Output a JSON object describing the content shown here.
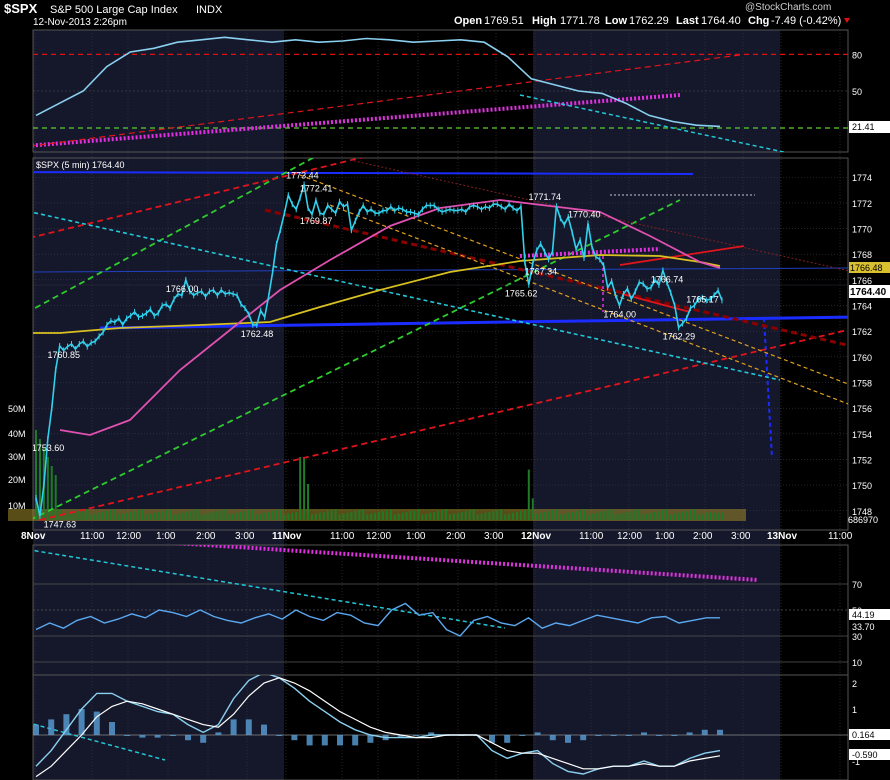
{
  "header": {
    "symbol": "$SPX",
    "name": "S&P 500 Large Cap Index",
    "exchange": "INDX",
    "datetime": "12-Nov-2013 2:26pm",
    "open_label": "Open",
    "open": "1769.51",
    "high_label": "High",
    "high": "1771.78",
    "low_label": "Low",
    "low": "1762.29",
    "last_label": "Last",
    "last": "1764.40",
    "chg_label": "Chg",
    "chg": "-7.49 (-0.42%)",
    "watermark": "@StockCharts.com"
  },
  "colors": {
    "price": "#31d1ee",
    "blue_line": "#1a2cff",
    "red_dash": "#e0141c",
    "green_dash": "#2ecc2e",
    "cyan_dash": "#22c8d8",
    "magenta": "#e030e0",
    "yellow_ma": "#d8c020",
    "pink_ma": "#e050b0",
    "orange_dash": "#e0a020",
    "dark_red": "#8a0000",
    "shade": "#15182a",
    "grid": "#3a3a4a",
    "axis_text": "#ffffff"
  },
  "chart_data": [
    {
      "type": "line",
      "panel": "rsi_top",
      "ylim": [
        0,
        100
      ],
      "ticks": [
        "80",
        "50"
      ],
      "value_label": "21.41",
      "levels": [
        80,
        30
      ],
      "series": [
        {
          "values": [
            30,
            40,
            50,
            70,
            82,
            85,
            90,
            92,
            94,
            92,
            90,
            92,
            90,
            91,
            93,
            92,
            90,
            91,
            92,
            90,
            78,
            60,
            55,
            50,
            48,
            40,
            30,
            25,
            22,
            21
          ]
        }
      ]
    },
    {
      "type": "line",
      "panel": "price",
      "title": "$SPX (5 min) 1764.40",
      "ylim": [
        1746.5,
        1775.5
      ],
      "ticks": [
        "1774",
        "1772",
        "1770",
        "1768",
        "1766",
        "1764",
        "1762",
        "1760",
        "1758",
        "1756",
        "1754",
        "1752",
        "1750",
        "1748"
      ],
      "x_labels": [
        "8Nov",
        "11:00",
        "12:00",
        "1:00",
        "2:00",
        "3:00",
        "11Nov",
        "11:00",
        "12:00",
        "1:00",
        "2:00",
        "3:00",
        "12Nov",
        "11:00",
        "12:00",
        "1:00",
        "2:00",
        "3:00",
        "13Nov",
        "11:00"
      ],
      "volume_ticks": [
        "50M",
        "40M",
        "30M",
        "20M",
        "10M"
      ],
      "volume_label": "686970",
      "right_labels": [
        "1766.48",
        "1764.40"
      ],
      "annotations": [
        {
          "text": "1773.44",
          "t": 68.5,
          "v": 1773.44
        },
        {
          "text": "1772.41",
          "t": 72,
          "v": 1772.41
        },
        {
          "text": "1769.87",
          "t": 72,
          "v": 1769.87
        },
        {
          "text": "1766.00",
          "t": 38,
          "v": 1766.0
        },
        {
          "text": "1762.48",
          "t": 57,
          "v": 1762.48
        },
        {
          "text": "1760.85",
          "t": 8,
          "v": 1760.85
        },
        {
          "text": "1753.60",
          "t": 4,
          "v": 1753.6
        },
        {
          "text": "1747.63",
          "t": 7,
          "v": 1747.63
        },
        {
          "text": "1771.74",
          "t": 130,
          "v": 1771.74
        },
        {
          "text": "1770.40",
          "t": 140,
          "v": 1770.4
        },
        {
          "text": "1767.34",
          "t": 129,
          "v": 1767.34
        },
        {
          "text": "1765.62",
          "t": 124,
          "v": 1765.62
        },
        {
          "text": "1766.74",
          "t": 161,
          "v": 1766.74
        },
        {
          "text": "1765.17",
          "t": 170,
          "v": 1765.17
        },
        {
          "text": "1764.00",
          "t": 149,
          "v": 1764.0
        },
        {
          "text": "1762.29",
          "t": 164,
          "v": 1762.29
        }
      ],
      "series": [
        {
          "values": [
            1749,
            1747.6,
            1750,
            1753.6,
            1756,
            1759,
            1760.85,
            1760.5,
            1760.8,
            1761,
            1760.6,
            1761,
            1761.2,
            1760.8,
            1761.1,
            1761.2,
            1761.6,
            1761.9,
            1762.5,
            1762.8,
            1762.7,
            1763,
            1762.5,
            1763,
            1763.2,
            1763.5,
            1763.1,
            1763.2,
            1763.4,
            1763.7,
            1763.2,
            1763.4,
            1764,
            1764.1,
            1763.8,
            1764.5,
            1764.9,
            1764.8,
            1766,
            1765.1,
            1764.8,
            1765,
            1765.1,
            1764.7,
            1765.1,
            1765.2,
            1764.8,
            1765.2,
            1764.9,
            1765,
            1764.9,
            1764.8,
            1764.1,
            1763.8,
            1763.3,
            1762.5,
            1762.48,
            1763.6,
            1763.1,
            1764.7,
            1766.6,
            1768.8,
            1769.9,
            1771.2,
            1772.6,
            1771.9,
            1771.5,
            1772.4,
            1773.44,
            1771.6,
            1771.1,
            1772.2,
            1771.2,
            1771.1,
            1771.8,
            1771.5,
            1771.2,
            1772.1,
            1771.7,
            1771.9,
            1769.87,
            1770.6,
            1771.3,
            1771.8,
            1771.3,
            1771.5,
            1771.2,
            1771.2,
            1771.4,
            1771.4,
            1771.7,
            1771.4,
            1771.6,
            1771.5,
            1771.3,
            1771.3,
            1771.2,
            1771.1,
            1771.5,
            1771.8,
            1771.8,
            1771.8,
            1771.5,
            1771.3,
            1771.4,
            1771.5,
            1771.4,
            1771.4,
            1771.5,
            1771.3,
            1771.7,
            1771.8,
            1771.7,
            1771.5,
            1771.7,
            1771.6,
            1771.9,
            1771.9,
            1771.7,
            1771.5,
            1771.9,
            1771.6,
            1771.4,
            1771.7,
            1767.34,
            1765.62,
            1767.3,
            1768.3,
            1768.8,
            1768.2,
            1767.6,
            1768.2,
            1771.74,
            1770.8,
            1770.3,
            1770.9,
            1769.7,
            1768.4,
            1769.1,
            1767.7,
            1770.4,
            1768.6,
            1767.8,
            1767.6,
            1767.1,
            1765.4,
            1765.9,
            1764.8,
            1764.0,
            1764.9,
            1765.3,
            1764.5,
            1765.1,
            1765.8,
            1765.7,
            1765.3,
            1765.4,
            1766.0,
            1765.6,
            1766.74,
            1765.8,
            1765.0,
            1764.0,
            1762.29,
            1762.6,
            1763.0,
            1763.8,
            1764.0,
            1764.5,
            1764.6,
            1764.4,
            1764.5,
            1764.8,
            1765.17,
            1764.4
          ]
        }
      ]
    },
    {
      "type": "line",
      "panel": "rsi_bottom",
      "ylim": [
        0,
        100
      ],
      "ticks": [
        "70",
        "50",
        "30",
        "10"
      ],
      "value_labels": [
        "44.19",
        "33.70"
      ],
      "series": [
        {
          "values": [
            35,
            40,
            36,
            42,
            45,
            40,
            43,
            47,
            44,
            50,
            48,
            45,
            50,
            45,
            42,
            40,
            44,
            47,
            43,
            50,
            45,
            42,
            48,
            46,
            40,
            38,
            50,
            55,
            46,
            48,
            35,
            30,
            42,
            45,
            40,
            38,
            44,
            36,
            40,
            38,
            42,
            46,
            44,
            42,
            40,
            44,
            45,
            40,
            42,
            44,
            44
          ]
        }
      ]
    },
    {
      "type": "line",
      "panel": "macd",
      "ticks": [
        "2",
        "1",
        "0",
        "-1"
      ],
      "value_labels": [
        "0.164",
        "-0.590"
      ],
      "series": [
        {
          "name": "macd",
          "values": [
            -1.2,
            -0.6,
            0.2,
            1.0,
            1.6,
            1.6,
            1.3,
            1.1,
            0.9,
            0.8,
            0.4,
            0.1,
            0.4,
            1.4,
            2.1,
            2.4,
            2.2,
            1.8,
            1.3,
            0.9,
            0.5,
            0.2,
            0.0,
            -0.1,
            -0.1,
            -0.1,
            0.0,
            0.0,
            0.0,
            0.0,
            -0.6,
            -0.9,
            -0.7,
            -0.6,
            -1.1,
            -1.4,
            -1.5,
            -1.3,
            -1.2,
            -1.2,
            -1.0,
            -1.2,
            -1.2,
            -0.9,
            -0.7,
            -0.6
          ]
        },
        {
          "name": "signal",
          "values": [
            -1.6,
            -1.2,
            -0.6,
            0.0,
            0.7,
            1.1,
            1.3,
            1.2,
            1.0,
            0.8,
            0.6,
            0.4,
            0.3,
            0.8,
            1.5,
            2.0,
            2.2,
            2.0,
            1.7,
            1.3,
            0.9,
            0.6,
            0.3,
            0.1,
            0.0,
            -0.1,
            -0.1,
            0.0,
            0.0,
            0.0,
            -0.3,
            -0.6,
            -0.7,
            -0.7,
            -0.9,
            -1.1,
            -1.3,
            -1.3,
            -1.2,
            -1.2,
            -1.1,
            -1.2,
            -1.2,
            -1.0,
            -0.9,
            -0.8
          ]
        }
      ]
    }
  ]
}
